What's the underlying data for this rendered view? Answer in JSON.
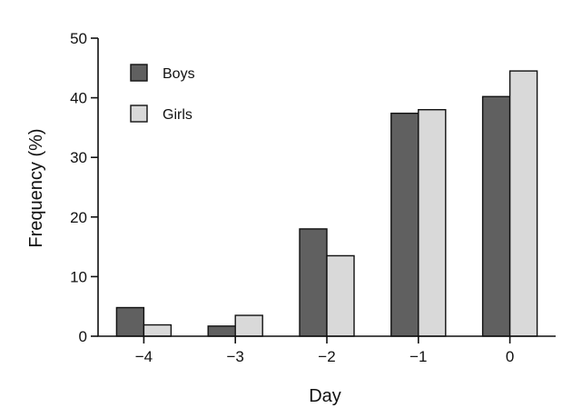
{
  "chart_data": {
    "type": "bar",
    "categories": [
      "−4",
      "−3",
      "−2",
      "−1",
      "0"
    ],
    "series": [
      {
        "name": "Boys",
        "values": [
          4.8,
          1.7,
          18.0,
          37.4,
          40.2
        ],
        "color": "#606060"
      },
      {
        "name": "Girls",
        "values": [
          1.9,
          3.5,
          13.5,
          38.0,
          44.5
        ],
        "color": "#d9d9d9"
      }
    ],
    "xlabel": "Day",
    "ylabel": "Frequency (%)",
    "ylim": [
      0,
      50
    ],
    "yticks": [
      "0",
      "10",
      "20",
      "30",
      "40",
      "50"
    ],
    "grid": false,
    "legend_position": "top-left"
  }
}
